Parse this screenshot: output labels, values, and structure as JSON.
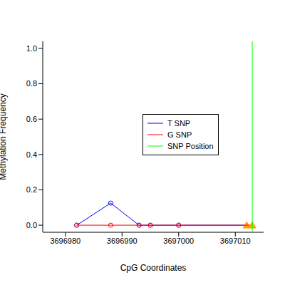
{
  "chart_data": {
    "type": "scatter",
    "x_label": "CpG Coordinates",
    "y_label": "Methylation Frequency",
    "xlim": [
      3696976,
      3697015
    ],
    "xticks": [
      3696980,
      3696990,
      3697000,
      3697010
    ],
    "ylim": [
      -0.04,
      1.04
    ],
    "yticks": [
      {
        "value": 0,
        "label": "0.0"
      },
      0.2,
      0.4,
      0.6,
      0.8,
      {
        "value": 1,
        "label": "1.0"
      }
    ],
    "series": [
      {
        "name": "T SNP",
        "color": "#0000ff",
        "marker": "circle",
        "line_style": "solid",
        "x": [
          3696982,
          3696988,
          3696993,
          3696995,
          3697000,
          3697012
        ],
        "values": [
          0,
          0.125,
          0,
          0,
          0,
          0
        ]
      },
      {
        "name": "G SNP",
        "color": "#ff0000",
        "marker": "circle",
        "line_style": "solid",
        "x": [
          3696982,
          3696988,
          3696993,
          3696995,
          3697000,
          3697013
        ],
        "values": [
          0,
          0,
          0,
          0,
          0,
          0
        ]
      },
      {
        "name": "SNP Position",
        "color": "#00ff00",
        "marker": "none",
        "line_style": "solid",
        "x": [
          3697013,
          3697013
        ],
        "values": [
          -0.04,
          1.04
        ]
      }
    ]
  }
}
